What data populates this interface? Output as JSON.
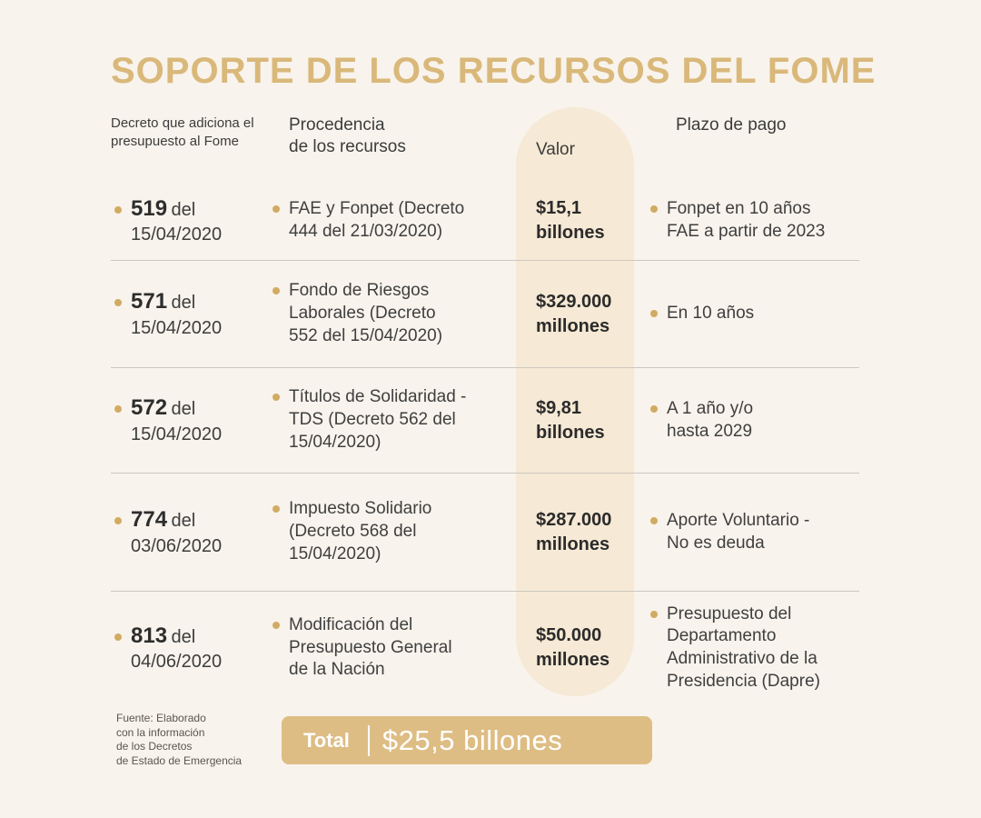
{
  "title": "SOPORTE DE LOS RECURSOS DEL FOME",
  "colors": {
    "background": "#f8f3ec",
    "title_gold": "#d9b87a",
    "bullet_gold": "#d2ab63",
    "valor_band": "#f6e9d5",
    "total_pill": "#debd84",
    "divider": "#ccc7bf",
    "text": "#3d3d3d"
  },
  "headers": {
    "decree": "Decreto que adiciona el\npresupuesto al Fome",
    "source": "Procedencia\nde los recursos",
    "value": "Valor",
    "term": "Plazo de pago"
  },
  "rows": [
    {
      "number": "519",
      "del": "del",
      "date": "15/04/2020",
      "source": "FAE y Fonpet (Decreto\n444 del 21/03/2020)",
      "amount": "$15,1",
      "unit": "billones",
      "term": "Fonpet en 10 años\nFAE a partir de 2023"
    },
    {
      "number": "571",
      "del": "del",
      "date": "15/04/2020",
      "source": "Fondo de Riesgos\nLaborales (Decreto\n552 del 15/04/2020)",
      "amount": "$329.000",
      "unit": "millones",
      "term": "En 10 años"
    },
    {
      "number": "572",
      "del": "del",
      "date": "15/04/2020",
      "source": "Títulos de Solidaridad -\nTDS (Decreto 562 del\n15/04/2020)",
      "amount": "$9,81",
      "unit": "billones",
      "term": "A 1 año y/o\nhasta 2029"
    },
    {
      "number": "774",
      "del": "del",
      "date": "03/06/2020",
      "source": "Impuesto Solidario\n(Decreto 568 del\n15/04/2020)",
      "amount": "$287.000",
      "unit": "millones",
      "term": "Aporte Voluntario -\nNo es deuda"
    },
    {
      "number": "813",
      "del": "del",
      "date": "04/06/2020",
      "source": "Modificación del\nPresupuesto General\nde la Nación",
      "amount": "$50.000",
      "unit": "millones",
      "term": "Presupuesto del\nDepartamento\nAdministrativo de la\nPresidencia (Dapre)"
    }
  ],
  "footer": {
    "source_note": "Fuente: Elaborado\ncon la información\nde los Decretos\nde Estado de Emergencia",
    "total_label": "Total",
    "total_value": "$25,5 billones"
  },
  "chart_data": {
    "type": "table",
    "title": "SOPORTE DE LOS RECURSOS DEL FOME",
    "columns": [
      "Decreto que adiciona el presupuesto al Fome",
      "Procedencia de los recursos",
      "Valor",
      "Plazo de pago"
    ],
    "rows": [
      [
        "519 del 15/04/2020",
        "FAE y Fonpet (Decreto 444 del 21/03/2020)",
        "$15,1 billones",
        "Fonpet en 10 años FAE a partir de 2023"
      ],
      [
        "571 del 15/04/2020",
        "Fondo de Riesgos Laborales (Decreto 552 del 15/04/2020)",
        "$329.000 millones",
        "En 10 años"
      ],
      [
        "572 del 15/04/2020",
        "Títulos de Solidaridad - TDS (Decreto 562 del 15/04/2020)",
        "$9,81 billones",
        "A 1 año y/o hasta 2029"
      ],
      [
        "774 del 03/06/2020",
        "Impuesto Solidario (Decreto 568 del 15/04/2020)",
        "$287.000 millones",
        "Aporte Voluntario - No es deuda"
      ],
      [
        "813 del 04/06/2020",
        "Modificación del Presupuesto General de la Nación",
        "$50.000 millones",
        "Presupuesto del Departamento Administrativo de la Presidencia (Dapre)"
      ]
    ],
    "total": {
      "label": "Total",
      "value": "$25,5 billones"
    },
    "source": "Fuente: Elaborado con la información de los Decretos de Estado de Emergencia"
  }
}
